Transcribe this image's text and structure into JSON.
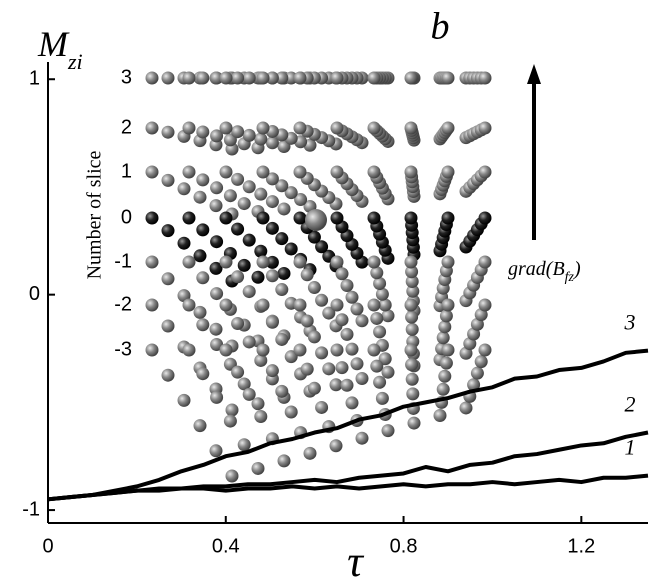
{
  "chart_data": {
    "type": "line",
    "title": "b",
    "y_label": {
      "main": "M",
      "sub": "zi"
    },
    "x_label": "τ",
    "x": [
      0,
      0.05,
      0.1,
      0.15,
      0.2,
      0.25,
      0.3,
      0.35,
      0.4,
      0.45,
      0.5,
      0.55,
      0.6,
      0.65,
      0.7,
      0.75,
      0.8,
      0.85,
      0.9,
      0.95,
      1.0,
      1.05,
      1.1,
      1.15,
      1.2,
      1.25,
      1.3,
      1.35
    ],
    "series": [
      {
        "name": "3",
        "color": "#000000",
        "values": [
          -0.95,
          -0.94,
          -0.93,
          -0.91,
          -0.89,
          -0.86,
          -0.82,
          -0.79,
          -0.75,
          -0.73,
          -0.69,
          -0.67,
          -0.64,
          -0.62,
          -0.58,
          -0.56,
          -0.52,
          -0.5,
          -0.48,
          -0.45,
          -0.43,
          -0.39,
          -0.38,
          -0.35,
          -0.34,
          -0.31,
          -0.27,
          -0.26
        ]
      },
      {
        "name": "2",
        "color": "#000000",
        "values": [
          -0.95,
          -0.94,
          -0.93,
          -0.92,
          -0.91,
          -0.9,
          -0.9,
          -0.89,
          -0.89,
          -0.88,
          -0.88,
          -0.87,
          -0.86,
          -0.87,
          -0.85,
          -0.84,
          -0.83,
          -0.8,
          -0.82,
          -0.79,
          -0.78,
          -0.75,
          -0.74,
          -0.72,
          -0.7,
          -0.69,
          -0.66,
          -0.64
        ]
      },
      {
        "name": "1",
        "color": "#000000",
        "values": [
          -0.95,
          -0.94,
          -0.93,
          -0.92,
          -0.91,
          -0.91,
          -0.9,
          -0.9,
          -0.91,
          -0.9,
          -0.9,
          -0.89,
          -0.9,
          -0.89,
          -0.9,
          -0.89,
          -0.88,
          -0.89,
          -0.88,
          -0.88,
          -0.87,
          -0.88,
          -0.87,
          -0.86,
          -0.87,
          -0.85,
          -0.85,
          -0.84
        ]
      }
    ],
    "xlim": [
      0,
      1.35
    ],
    "xticks": [
      0,
      0.4,
      0.8,
      1.2
    ],
    "ylim": [
      -1.06,
      1.08
    ],
    "yticks": [
      -1,
      0,
      1
    ],
    "grid": false,
    "inset": {
      "y_label": "Number of slice",
      "slices": [
        "3",
        "2",
        "1",
        "0",
        "-1",
        "-2",
        "-3"
      ],
      "arrow_label": {
        "main": "grad(B",
        "sub": "fz",
        "end": ")"
      }
    }
  }
}
